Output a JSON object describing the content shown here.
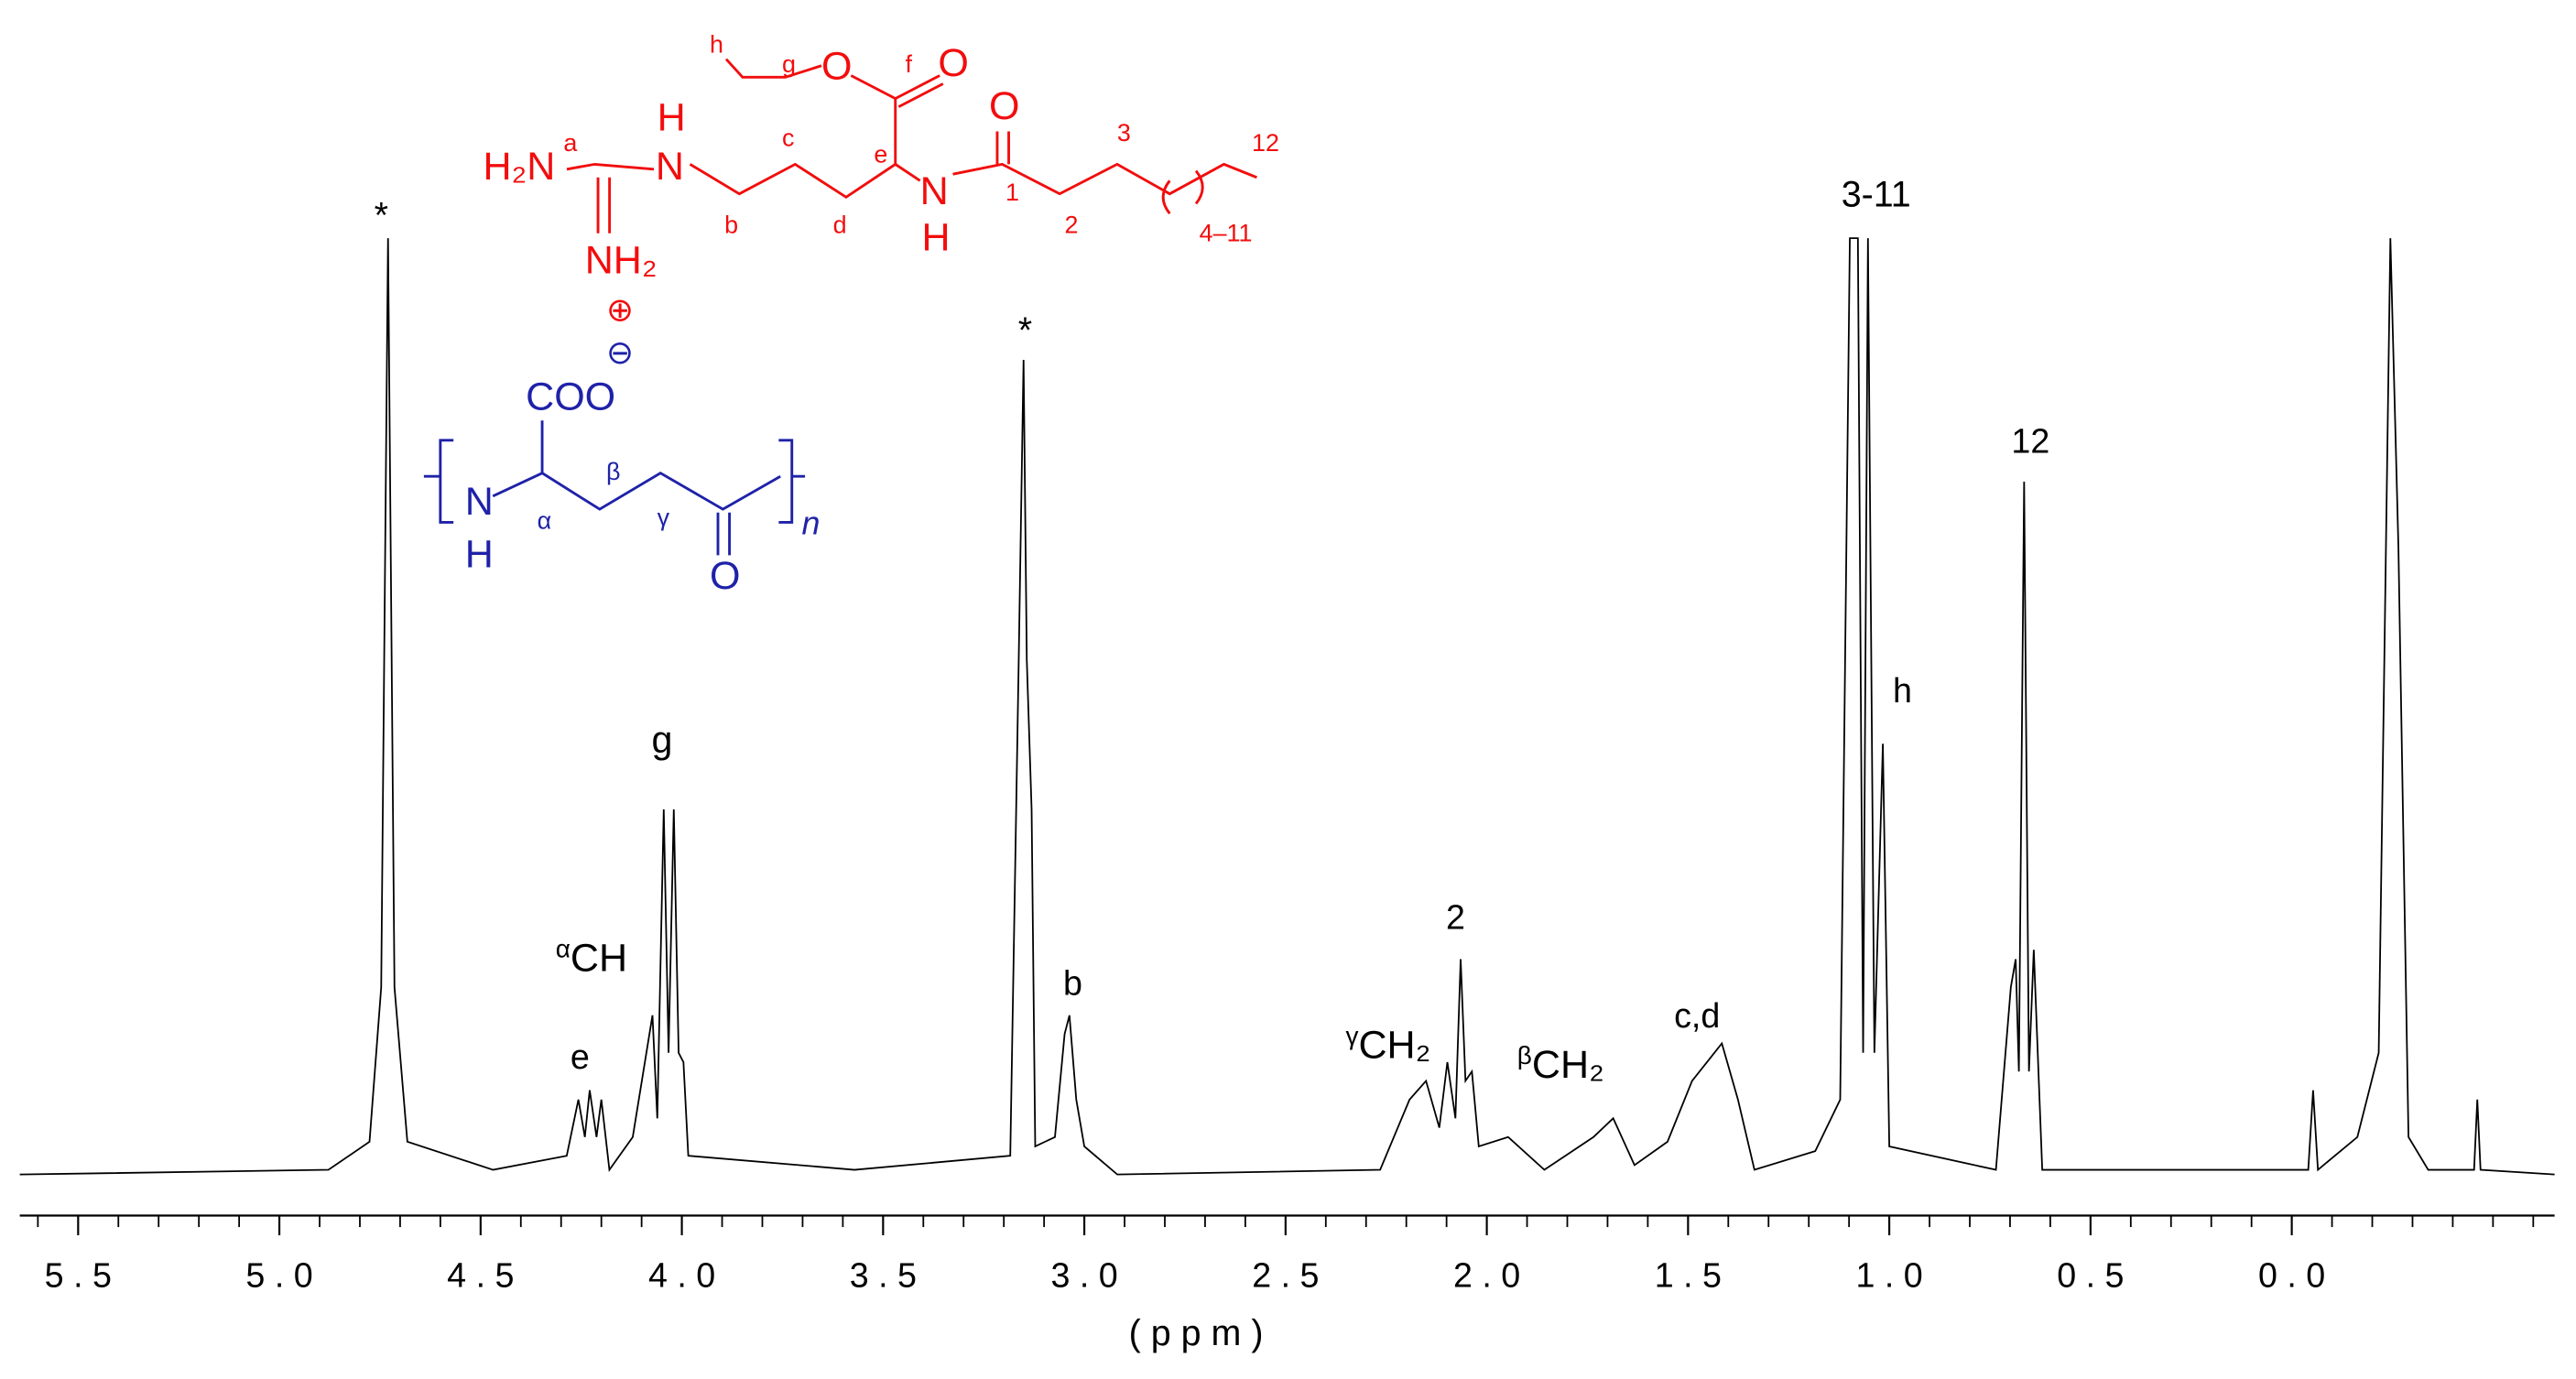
{
  "chart_data": {
    "type": "line",
    "color": "#000000",
    "x": [
      5.645,
      4.878,
      4.776,
      4.747,
      4.73,
      4.714,
      4.682,
      4.469,
      4.286,
      4.257,
      4.241,
      4.229,
      4.212,
      4.2,
      4.18,
      4.122,
      4.073,
      4.061,
      4.045,
      4.033,
      4.02,
      4.008,
      3.996,
      3.984,
      3.571,
      3.184,
      3.163,
      3.151,
      3.143,
      3.131,
      3.122,
      3.073,
      3.049,
      3.037,
      3.02,
      3.0,
      2.918,
      2.265,
      2.192,
      2.151,
      2.118,
      2.098,
      2.078,
      2.065,
      2.053,
      2.037,
      2.02,
      1.947,
      1.857,
      1.735,
      1.686,
      1.633,
      1.551,
      1.49,
      1.416,
      1.376,
      1.335,
      1.184,
      1.122,
      1.098,
      1.078,
      1.065,
      1.053,
      1.037,
      1.016,
      1.0,
      0.735,
      0.698,
      0.686,
      0.678,
      0.665,
      0.653,
      0.641,
      0.62,
      -0.041,
      -0.053,
      -0.065,
      -0.163,
      -0.216,
      -0.245,
      -0.265,
      -0.29,
      -0.339,
      -0.453,
      -0.461,
      -0.469,
      -0.653
    ],
    "values": [
      0,
      0.5,
      3.5,
      20,
      100,
      20,
      3.5,
      0.5,
      2,
      8,
      4,
      9,
      4,
      8,
      0.5,
      4,
      17,
      6,
      39,
      13,
      39,
      13,
      12,
      2,
      0.5,
      2,
      55,
      87,
      55,
      39,
      3,
      4,
      15,
      17,
      8,
      3,
      0,
      0.5,
      8,
      10,
      5,
      12,
      6,
      23,
      10,
      11,
      3,
      4,
      0.5,
      4,
      6,
      1,
      3.5,
      10,
      14,
      8,
      0.5,
      2.5,
      8,
      100,
      100,
      13,
      100,
      13,
      46,
      3,
      0.5,
      20,
      23,
      11,
      74,
      11,
      24,
      0.5,
      0.5,
      9,
      0.5,
      4,
      13,
      100,
      67,
      4,
      0.5,
      0.5,
      8,
      0.5,
      0
    ],
    "xlim": [
      5.645,
      -0.653
    ],
    "ylim": [
      0,
      100
    ],
    "xticks": [
      {
        "value": 5.5,
        "label": "5 . 5"
      },
      {
        "value": 5.0,
        "label": "5 . 0"
      },
      {
        "value": 4.5,
        "label": "4 . 5"
      },
      {
        "value": 4.0,
        "label": "4 . 0"
      },
      {
        "value": 3.5,
        "label": "3 . 5"
      },
      {
        "value": 3.0,
        "label": "3 . 0"
      },
      {
        "value": 2.5,
        "label": "2 . 5"
      },
      {
        "value": 2.0,
        "label": "2 . 0"
      },
      {
        "value": 1.5,
        "label": "1 . 5"
      },
      {
        "value": 1.0,
        "label": "1 . 0"
      },
      {
        "value": 0.5,
        "label": "0 . 5"
      },
      {
        "value": 0.0,
        "label": "0 . 0"
      }
    ],
    "xminorticks": [
      5.6,
      5.4,
      5.3,
      5.2,
      5.1,
      4.9,
      4.8,
      4.7,
      4.6,
      4.4,
      4.3,
      4.2,
      4.1,
      3.9,
      3.8,
      3.7,
      3.6,
      3.4,
      3.3,
      3.2,
      3.1,
      2.9,
      2.8,
      2.7,
      2.6,
      2.4,
      2.3,
      2.2,
      2.1,
      1.9,
      1.8,
      1.7,
      1.6,
      1.4,
      1.3,
      1.2,
      1.1,
      0.9,
      0.8,
      0.7,
      0.6,
      0.4,
      0.3,
      0.2,
      0.1,
      -0.1,
      -0.2,
      -0.3,
      -0.4,
      -0.5,
      -0.6
    ],
    "xlabel": "( p p m )",
    "annotations": [
      {
        "text": "*"
      },
      {
        "sup": "α",
        "text": "CH"
      },
      {
        "text": "e"
      },
      {
        "text": "g"
      },
      {
        "text": "*"
      },
      {
        "text": "b"
      },
      {
        "sup": "γ",
        "text": "CH₂"
      },
      {
        "text": "2"
      },
      {
        "sup": "β",
        "text": "CH₂"
      },
      {
        "text": "c,d"
      },
      {
        "text": "3-11"
      },
      {
        "text": "h"
      },
      {
        "text": "12"
      }
    ]
  },
  "structure": {
    "cation": [
      "h",
      "g",
      "O",
      "f",
      "O",
      "H₂N",
      "a",
      "H",
      "N",
      "b",
      "c",
      "d",
      "e",
      "N",
      "H",
      "O",
      "1",
      "2",
      "3",
      "12",
      "4–11",
      "NH₂",
      "⊕"
    ],
    "anion": [
      "⊖",
      "COO",
      "N",
      "H",
      "α",
      "β",
      "γ",
      "O",
      "n"
    ]
  }
}
